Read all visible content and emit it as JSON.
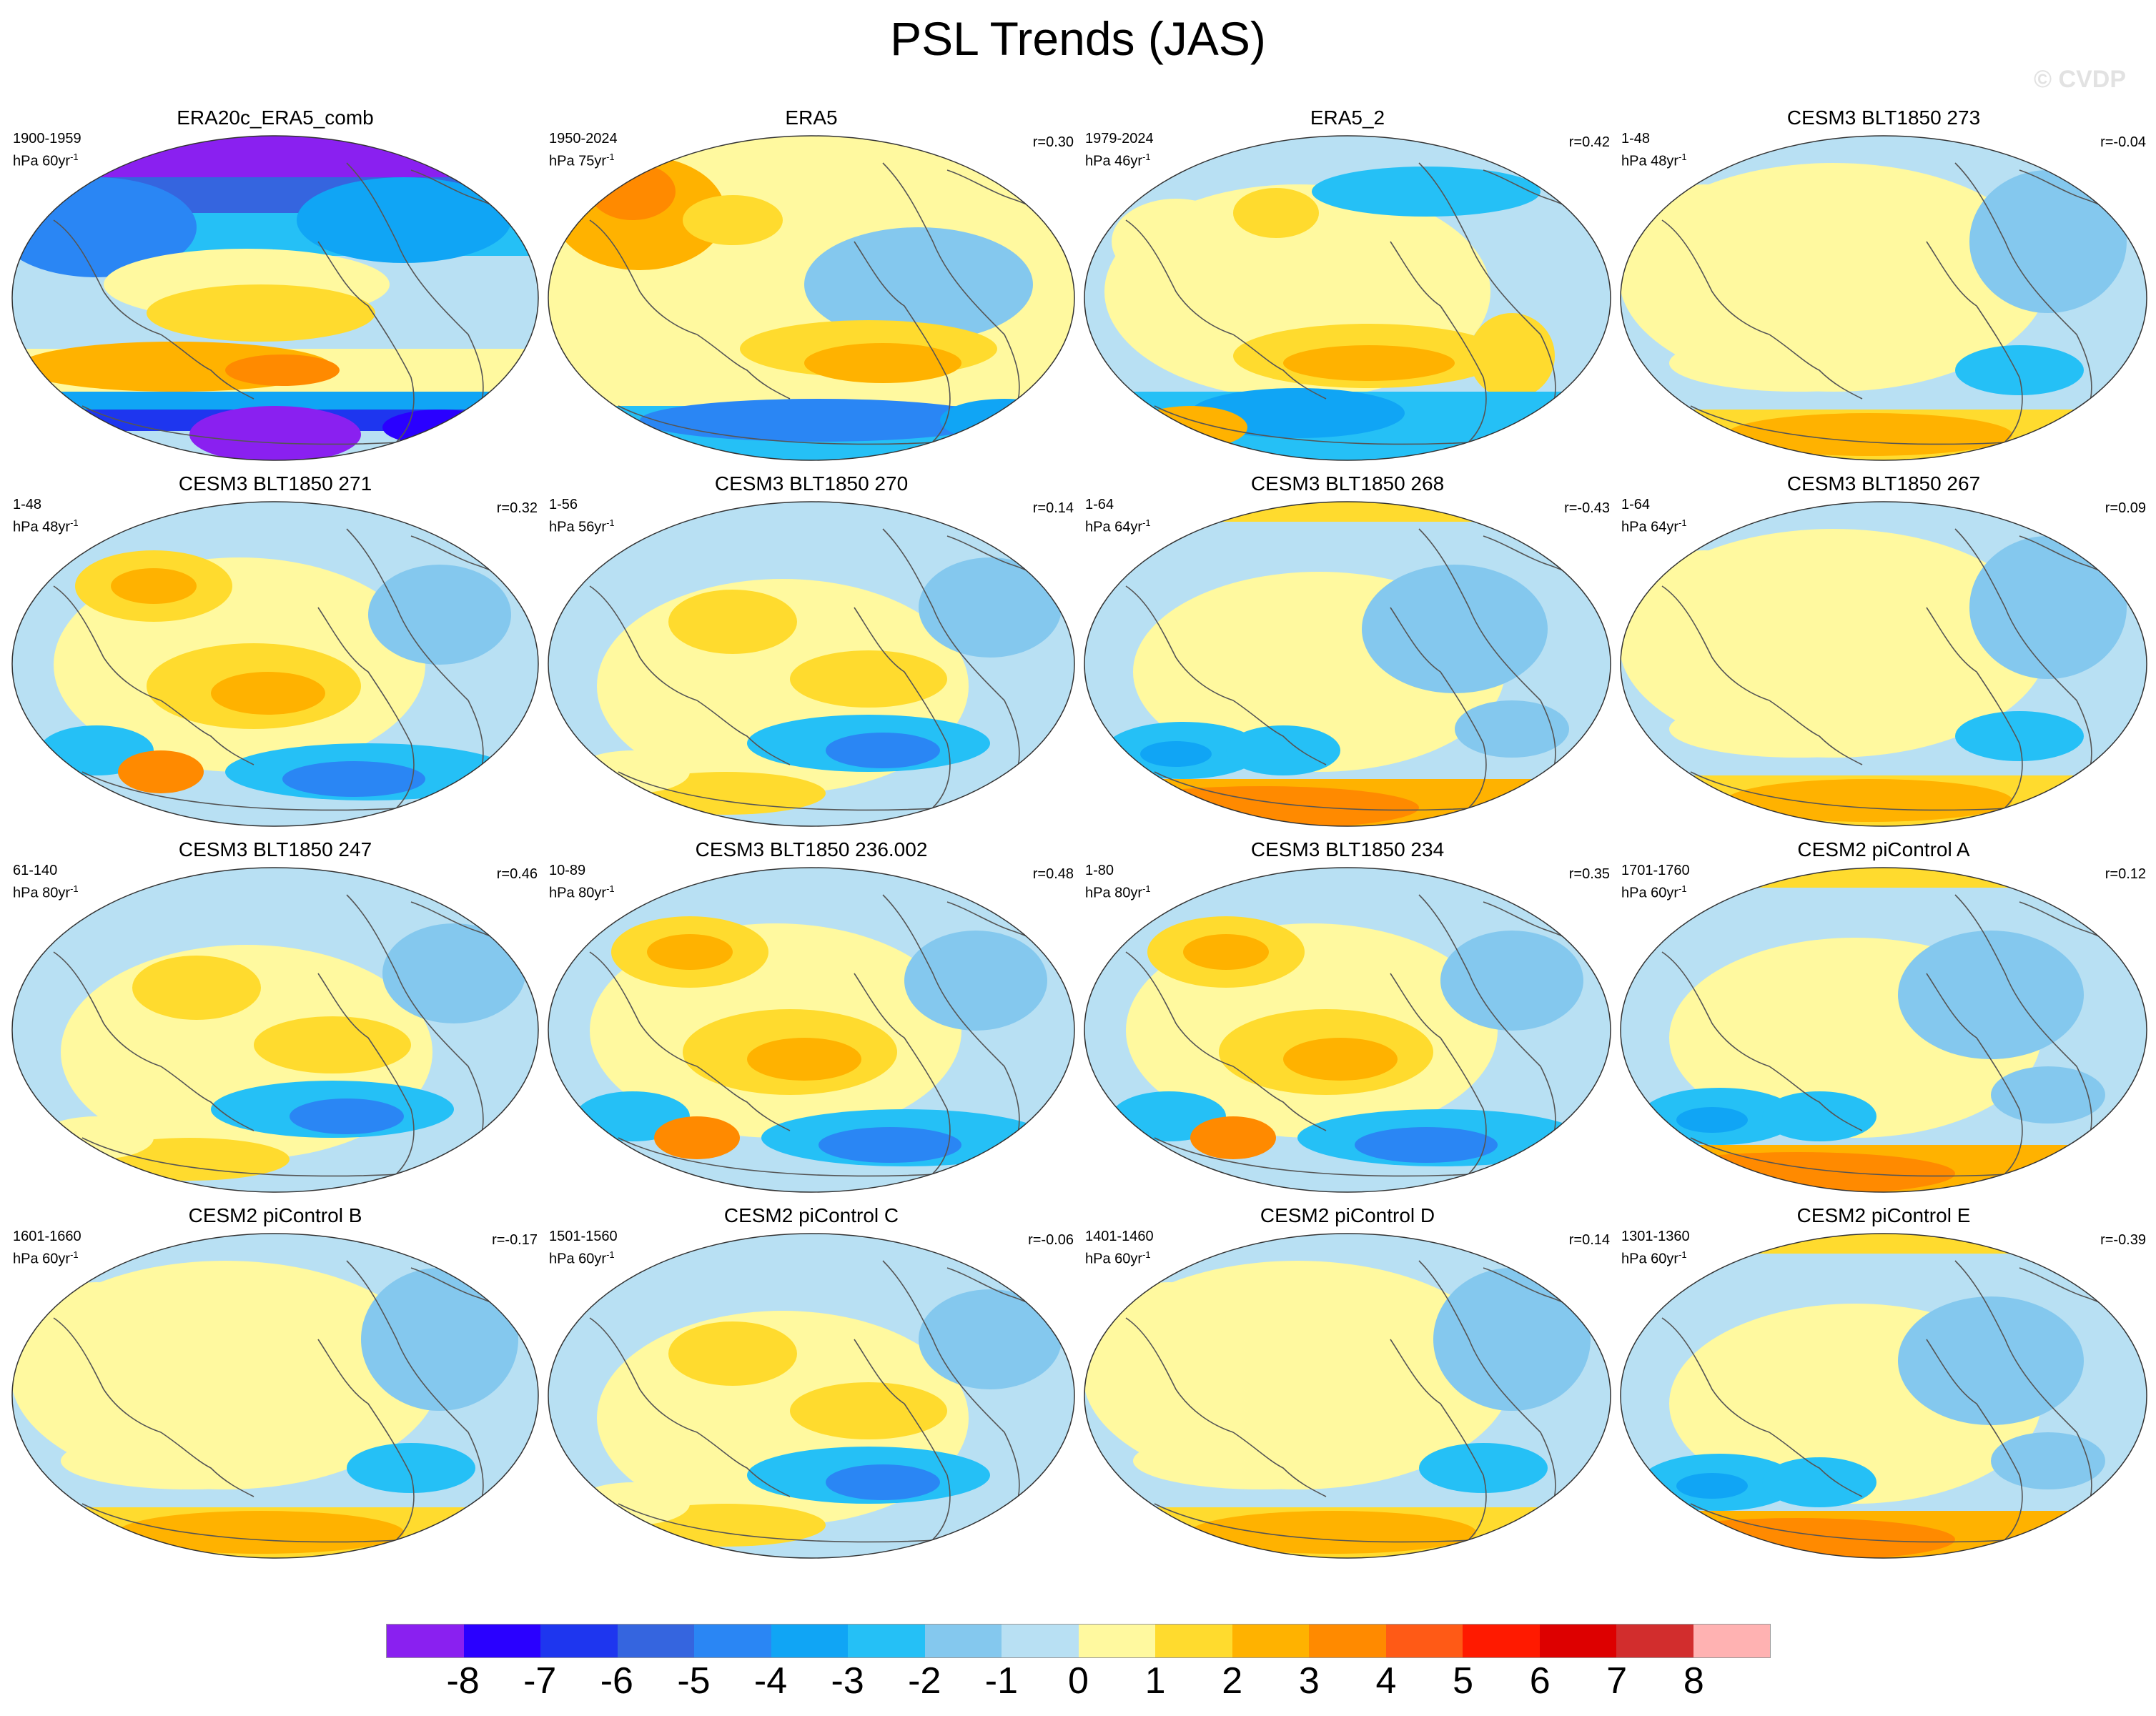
{
  "title": "PSL Trends (JAS)",
  "watermark": "© CVDP",
  "panels": [
    {
      "name": "ERA20c_ERA5_comb",
      "period": "1900-1959",
      "units": "hPa 60yr",
      "exp": "-1",
      "r": "",
      "style": "strong"
    },
    {
      "name": "ERA5",
      "period": "1950-2024",
      "units": "hPa 75yr",
      "exp": "-1",
      "r": "r=0.30",
      "style": "era5"
    },
    {
      "name": "ERA5_2",
      "period": "1979-2024",
      "units": "hPa 46yr",
      "exp": "-1",
      "r": "r=0.42",
      "style": "era5b"
    },
    {
      "name": "CESM3 BLT1850 273",
      "period": "1-48",
      "units": "hPa 48yr",
      "exp": "-1",
      "r": "r=-0.04",
      "style": "a"
    },
    {
      "name": "CESM3 BLT1850 271",
      "period": "1-48",
      "units": "hPa 48yr",
      "exp": "-1",
      "r": "r=0.32",
      "style": "b"
    },
    {
      "name": "CESM3 BLT1850 270",
      "period": "1-56",
      "units": "hPa 56yr",
      "exp": "-1",
      "r": "r=0.14",
      "style": "c"
    },
    {
      "name": "CESM3 BLT1850 268",
      "period": "1-64",
      "units": "hPa 64yr",
      "exp": "-1",
      "r": "r=-0.43",
      "style": "d"
    },
    {
      "name": "CESM3 BLT1850 267",
      "period": "1-64",
      "units": "hPa 64yr",
      "exp": "-1",
      "r": "r=0.09",
      "style": "a"
    },
    {
      "name": "CESM3 BLT1850 247",
      "period": "61-140",
      "units": "hPa 80yr",
      "exp": "-1",
      "r": "r=0.46",
      "style": "c"
    },
    {
      "name": "CESM3 BLT1850 236.002",
      "period": "10-89",
      "units": "hPa 80yr",
      "exp": "-1",
      "r": "r=0.48",
      "style": "b"
    },
    {
      "name": "CESM3 BLT1850 234",
      "period": "1-80",
      "units": "hPa 80yr",
      "exp": "-1",
      "r": "r=0.35",
      "style": "b"
    },
    {
      "name": "CESM2 piControl A",
      "period": "1701-1760",
      "units": "hPa 60yr",
      "exp": "-1",
      "r": "r=0.12",
      "style": "d"
    },
    {
      "name": "CESM2 piControl B",
      "period": "1601-1660",
      "units": "hPa 60yr",
      "exp": "-1",
      "r": "r=-0.17",
      "style": "a"
    },
    {
      "name": "CESM2 piControl C",
      "period": "1501-1560",
      "units": "hPa 60yr",
      "exp": "-1",
      "r": "r=-0.06",
      "style": "c"
    },
    {
      "name": "CESM2 piControl D",
      "period": "1401-1460",
      "units": "hPa 60yr",
      "exp": "-1",
      "r": "r=0.14",
      "style": "a"
    },
    {
      "name": "CESM2 piControl E",
      "period": "1301-1360",
      "units": "hPa 60yr",
      "exp": "-1",
      "r": "r=-0.39",
      "style": "d"
    }
  ],
  "colorbar": {
    "colors": [
      "#8a20f0",
      "#2a00ff",
      "#1e36ef",
      "#3565df",
      "#2a86f4",
      "#10a5f5",
      "#25c0f6",
      "#84c8ee",
      "#b8e0f3",
      "#fff99f",
      "#ffdb2e",
      "#ffb200",
      "#ff8a00",
      "#ff5a16",
      "#ff1a00",
      "#dd0000",
      "#d22d2d",
      "#ffb2b2"
    ],
    "labels": [
      "-8",
      "-7",
      "-6",
      "-5",
      "-4",
      "-3",
      "-2",
      "-1",
      "0",
      "1",
      "2",
      "3",
      "4",
      "5",
      "6",
      "7",
      "8"
    ]
  },
  "palette": {
    "ocean_base": "#b8e0f3",
    "pos1": "#fff99f",
    "pos2": "#ffdb2e",
    "pos3": "#ffb200",
    "pos4": "#ff8a00",
    "pos5": "#ff5a16",
    "neg1": "#84c8ee",
    "neg2": "#25c0f6",
    "neg3": "#10a5f5",
    "neg4": "#2a86f4",
    "neg5": "#3565df",
    "neg6": "#1e36ef",
    "neg7": "#2a00ff",
    "neg8": "#8a20f0",
    "coast": "#555555"
  }
}
